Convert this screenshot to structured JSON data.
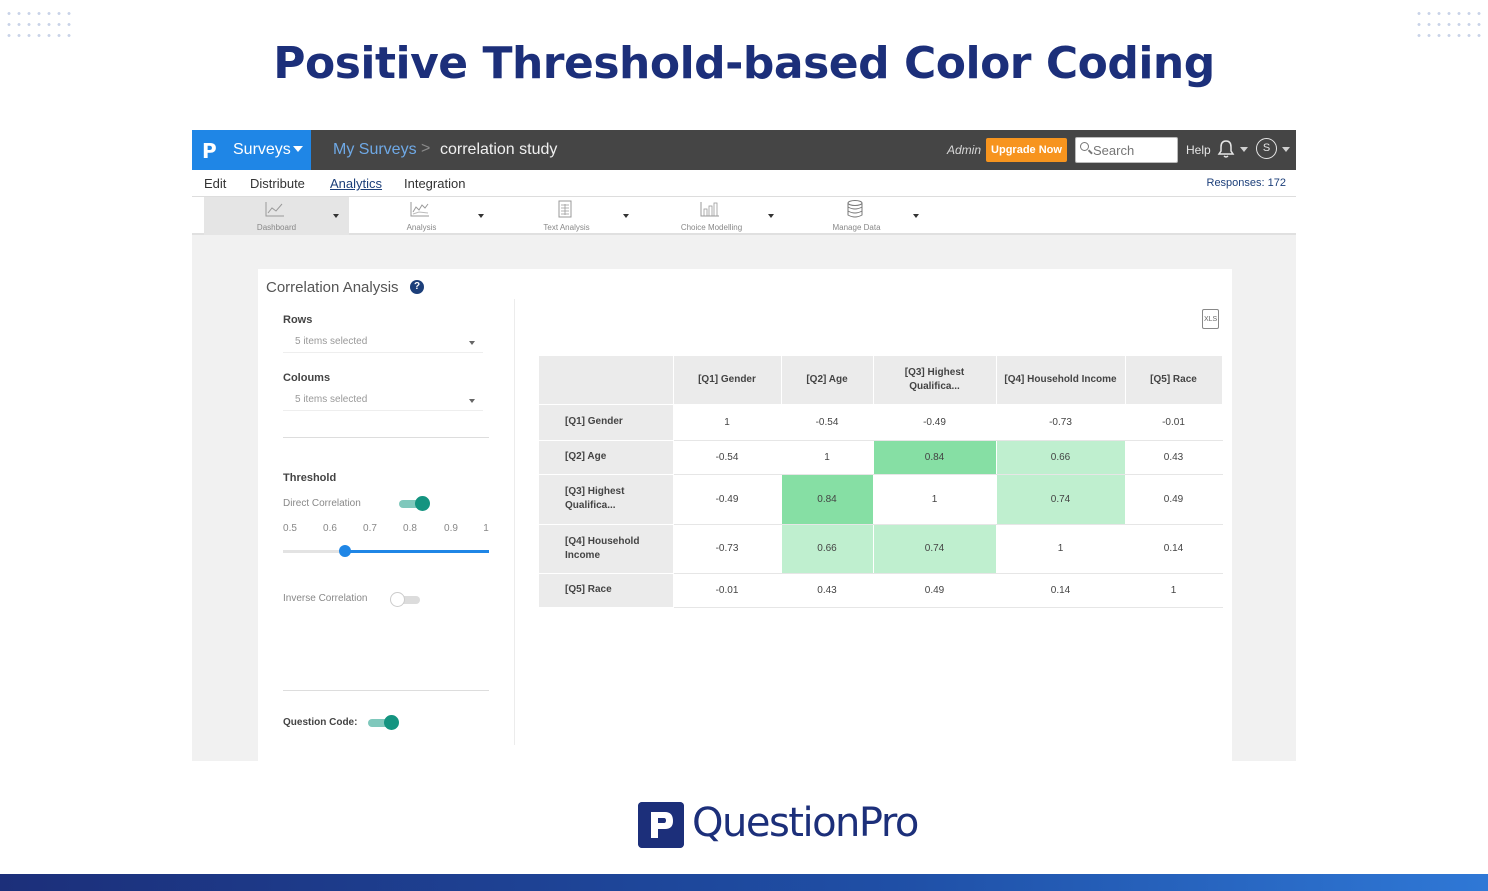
{
  "page_title": "Positive Threshold-based Color Coding",
  "topbar": {
    "brand_logo": "P",
    "brand_label": "Surveys",
    "breadcrumb_mine": "My Surveys",
    "breadcrumb_separator": ">",
    "breadcrumb_current": "correlation study",
    "role": "Admin",
    "upgrade_label": "Upgrade Now",
    "search_placeholder": "Search",
    "help_label": "Help",
    "avatar_initial": "S"
  },
  "subnav": {
    "items": [
      "Edit",
      "Distribute",
      "Analytics",
      "Integration"
    ],
    "active": "Analytics",
    "responses": "Responses: 172"
  },
  "toolbar": {
    "items": [
      {
        "label": "Dashboard",
        "icon": "line-chart-icon",
        "active": true
      },
      {
        "label": "Analysis",
        "icon": "analysis-chart-icon",
        "active": false
      },
      {
        "label": "Text Analysis",
        "icon": "document-table-icon",
        "active": false
      },
      {
        "label": "Choice Modelling",
        "icon": "bar-chart-icon",
        "active": false
      },
      {
        "label": "Manage Data",
        "icon": "database-icon",
        "active": false
      }
    ]
  },
  "panel": {
    "title": "Correlation Analysis",
    "help_icon": "?",
    "rows_label": "Rows",
    "rows_value": "5 items selected",
    "columns_label": "Coloums",
    "columns_value": "5 items selected",
    "threshold_label": "Threshold",
    "direct_label": "Direct Correlation",
    "direct_on": true,
    "slider_ticks": [
      "0.5",
      "0.6",
      "0.7",
      "0.8",
      "0.9",
      "1"
    ],
    "slider_value": 0.65,
    "inverse_label": "Inverse Correlation",
    "inverse_on": false,
    "question_code_label": "Question Code:",
    "question_code_on": true,
    "export_label": "XLS"
  },
  "table": {
    "columns": [
      "[Q1] Gender",
      "[Q2] Age",
      "[Q3] Highest Qualifica...",
      "[Q4] Household Income",
      "[Q5] Race"
    ],
    "rows": [
      {
        "label": "[Q1] Gender",
        "cells": [
          "1",
          "-0.54",
          "-0.49",
          "-0.73",
          "-0.01"
        ],
        "shade": [
          "",
          "",
          "",
          "",
          ""
        ]
      },
      {
        "label": "[Q2] Age",
        "cells": [
          "-0.54",
          "1",
          "0.84",
          "0.66",
          "0.43"
        ],
        "shade": [
          "",
          "",
          "hi",
          "mid",
          ""
        ]
      },
      {
        "label": "[Q3] Highest Qualifica...",
        "cells": [
          "-0.49",
          "0.84",
          "1",
          "0.74",
          "0.49"
        ],
        "shade": [
          "",
          "hi",
          "",
          "mid",
          ""
        ]
      },
      {
        "label": "[Q4] Household Income",
        "cells": [
          "-0.73",
          "0.66",
          "0.74",
          "1",
          "0.14"
        ],
        "shade": [
          "",
          "mid",
          "mid",
          "",
          ""
        ]
      },
      {
        "label": "[Q5] Race",
        "cells": [
          "-0.01",
          "0.43",
          "0.49",
          "0.14",
          "1"
        ],
        "shade": [
          "",
          "",
          "",
          "",
          ""
        ]
      }
    ],
    "colors": {
      "high": "#86dfa4",
      "medium": "#bfefcf"
    }
  },
  "footer": {
    "logo_text": "QuestionPro"
  },
  "colors": {
    "brand_blue": "#1f86e6",
    "title_navy": "#1c2f7a",
    "upgrade_orange": "#f7941e",
    "toggle_teal": "#149480"
  }
}
